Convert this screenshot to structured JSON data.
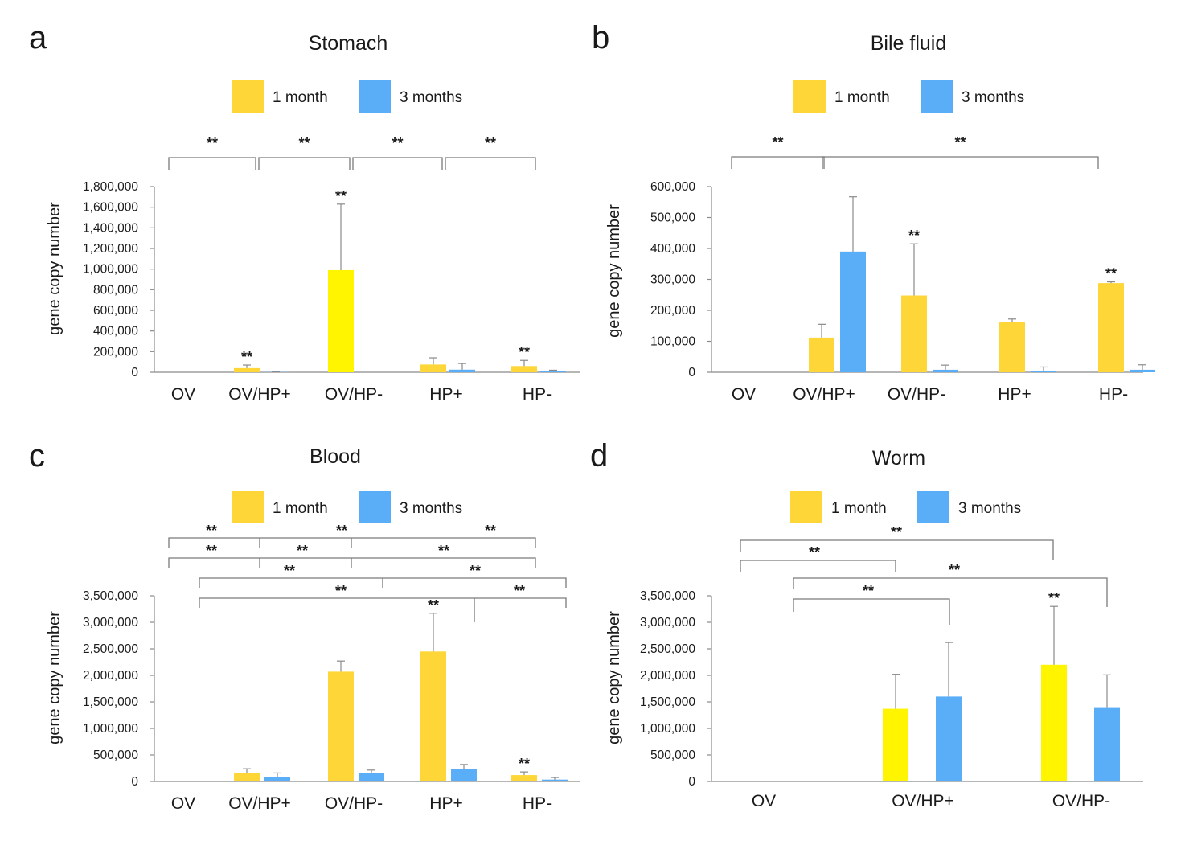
{
  "colors": {
    "one_month_gold": "#fed638",
    "one_month_yellow": "#fff500",
    "three_months": "#5aaef8"
  },
  "chart_data": [
    {
      "panel": "a",
      "type": "bar",
      "title": "Stomach",
      "ylabel": "gene copy number",
      "xlabel": "",
      "ylim": [
        0,
        1800000
      ],
      "yticks": [
        0,
        200000,
        400000,
        600000,
        800000,
        1000000,
        1200000,
        1400000,
        1600000,
        1800000
      ],
      "ytick_labels": [
        "0",
        "200,000",
        "400,000",
        "600,000",
        "800,000",
        "1,000,000",
        "1,200,000",
        "1,400,000",
        "1,600,000",
        "1,800,000"
      ],
      "categories": [
        "OV",
        "OV/HP+",
        "OV/HP-",
        "HP+",
        "HP-"
      ],
      "legend": [
        "1 month",
        "3 months"
      ],
      "series": [
        {
          "name": "1 month",
          "color_key": "one_month_gold",
          "values": [
            0,
            40000,
            990000,
            75000,
            60000
          ],
          "errors": [
            0,
            30000,
            640000,
            65000,
            55000
          ],
          "bar_colors": [
            "one_month_gold",
            "one_month_gold",
            "one_month_yellow",
            "one_month_gold",
            "one_month_gold"
          ]
        },
        {
          "name": "3 months",
          "color_key": "three_months",
          "values": [
            0,
            2000,
            0,
            25000,
            12000
          ],
          "errors": [
            0,
            5000,
            0,
            60000,
            8000
          ]
        }
      ],
      "bar_stars": [
        {
          "series": 0,
          "category": 1,
          "text": "**"
        },
        {
          "series": 0,
          "category": 2,
          "text": "**"
        },
        {
          "series": 0,
          "category": 4,
          "text": "**"
        }
      ],
      "brackets": [
        {
          "from": 0,
          "to": 1,
          "level": 0,
          "text": "**"
        },
        {
          "from": 1,
          "to": 2,
          "level": 0,
          "text": "**"
        },
        {
          "from": 2,
          "to": 3,
          "level": 0,
          "text": "**"
        },
        {
          "from": 3,
          "to": 4,
          "level": 0,
          "text": "**"
        }
      ]
    },
    {
      "panel": "b",
      "type": "bar",
      "title": "Bile fluid",
      "ylabel": "gene copy number",
      "xlabel": "",
      "ylim": [
        0,
        600000
      ],
      "yticks": [
        0,
        100000,
        200000,
        300000,
        400000,
        500000,
        600000
      ],
      "ytick_labels": [
        "0",
        "100,000",
        "200,000",
        "300,000",
        "400,000",
        "500,000",
        "600,000"
      ],
      "categories": [
        "OV",
        "OV/HP+",
        "OV/HP-",
        "HP+",
        "HP-"
      ],
      "legend": [
        "1 month",
        "3 months"
      ],
      "series": [
        {
          "name": "1 month",
          "color_key": "one_month_gold",
          "values": [
            0,
            112000,
            248000,
            162000,
            288000
          ],
          "errors": [
            0,
            43000,
            167000,
            10000,
            4000
          ]
        },
        {
          "name": "3 months",
          "color_key": "three_months",
          "values": [
            0,
            390000,
            8000,
            3000,
            8000
          ],
          "errors": [
            0,
            177000,
            15000,
            14000,
            16000
          ]
        }
      ],
      "bar_stars": [
        {
          "series": 0,
          "category": 2,
          "text": "**"
        },
        {
          "series": 0,
          "category": 4,
          "text": "**"
        }
      ],
      "brackets": [
        {
          "from": 0,
          "to": 1,
          "level": 0,
          "text": "**"
        },
        {
          "from": 1,
          "to": 4,
          "level": 0,
          "text": "**"
        }
      ]
    },
    {
      "panel": "c",
      "type": "bar",
      "title": "Blood",
      "ylabel": "gene copy number",
      "xlabel": "",
      "ylim": [
        0,
        3500000
      ],
      "yticks": [
        0,
        500000,
        1000000,
        1500000,
        2000000,
        2500000,
        3000000,
        3500000
      ],
      "ytick_labels": [
        "0",
        "500,000",
        "1,000,000",
        "1,500,000",
        "2,000,000",
        "2,500,000",
        "3,000,000",
        "3,500,000"
      ],
      "categories": [
        "OV",
        "OV/HP+",
        "OV/HP-",
        "HP+",
        "HP-"
      ],
      "legend": [
        "1 month",
        "3 months"
      ],
      "series": [
        {
          "name": "1 month",
          "color_key": "one_month_gold",
          "values": [
            0,
            160000,
            2070000,
            2450000,
            120000
          ],
          "errors": [
            0,
            80000,
            200000,
            720000,
            60000
          ]
        },
        {
          "name": "3 months",
          "color_key": "three_months",
          "values": [
            0,
            90000,
            155000,
            230000,
            35000
          ],
          "errors": [
            0,
            70000,
            60000,
            90000,
            40000
          ]
        }
      ],
      "bar_stars": [
        {
          "series": 0,
          "category": 3,
          "text": "**"
        },
        {
          "series": 0,
          "category": 4,
          "text": "**"
        }
      ],
      "brackets": [
        {
          "from": 0,
          "to": 4,
          "mid": 2,
          "anchor": "cat",
          "level": 0,
          "text": "**"
        },
        {
          "from": 0,
          "to": 4,
          "mid": 1,
          "anchor": "cat",
          "level": 1,
          "text": "**"
        },
        {
          "from": 0,
          "to": 4,
          "mid": 2,
          "anchor": "s1",
          "level": 2,
          "text": "**"
        },
        {
          "from": 0,
          "to": 4,
          "mid": 3,
          "anchor": "s1",
          "level": 3,
          "text": "**"
        }
      ],
      "bracket_stars": [
        {
          "text": "**",
          "between": [
            0,
            1
          ],
          "level": 0
        },
        {
          "text": "**",
          "between": [
            1,
            2
          ],
          "level": 0
        },
        {
          "text": "**",
          "between": [
            3,
            4
          ],
          "level": 0
        },
        {
          "text": "**",
          "between": [
            0,
            1
          ],
          "level": 1
        },
        {
          "text": "**",
          "between": [
            1,
            2
          ],
          "level": 1
        },
        {
          "text": "**",
          "between": [
            2,
            4
          ],
          "level": 1
        },
        {
          "text": "**",
          "between": [
            0,
            2
          ],
          "level": 2
        },
        {
          "text": "**",
          "between": [
            2,
            4
          ],
          "level": 2
        },
        {
          "text": "**",
          "between": [
            0,
            3
          ],
          "level": 3
        },
        {
          "text": "**",
          "between": [
            3,
            4
          ],
          "level": 3
        }
      ]
    },
    {
      "panel": "d",
      "type": "bar",
      "title": "Worm",
      "ylabel": "gene copy number",
      "xlabel": "",
      "ylim": [
        0,
        3500000
      ],
      "yticks": [
        0,
        500000,
        1000000,
        1500000,
        2000000,
        2500000,
        3000000,
        3500000
      ],
      "ytick_labels": [
        "0",
        "500,000",
        "1,000,000",
        "1,500,000",
        "2,000,000",
        "2,500,000",
        "3,000,000",
        "3,500,000"
      ],
      "categories": [
        "OV",
        "OV/HP+",
        "OV/HP-"
      ],
      "legend": [
        "1 month",
        "3 months"
      ],
      "series": [
        {
          "name": "1 month",
          "color_key": "one_month_yellow",
          "values": [
            0,
            1370000,
            2200000
          ],
          "errors": [
            0,
            650000,
            1100000
          ]
        },
        {
          "name": "3 months",
          "color_key": "three_months",
          "values": [
            0,
            1600000,
            1400000
          ],
          "errors": [
            0,
            1020000,
            610000
          ]
        }
      ],
      "bar_stars": [
        {
          "series": 0,
          "category": 2,
          "text": "**"
        }
      ],
      "brackets": [
        {
          "pairs": [
            [
              0,
              "s0"
            ],
            [
              2,
              "s0"
            ]
          ],
          "level": 0,
          "text": "**"
        },
        {
          "pairs": [
            [
              0,
              "s0"
            ],
            [
              1,
              "s0"
            ]
          ],
          "level": 1,
          "text": "**"
        },
        {
          "pairs": [
            [
              0,
              "s1"
            ],
            [
              2,
              "s1"
            ]
          ],
          "level": 2,
          "text": "**"
        },
        {
          "pairs": [
            [
              0,
              "s1"
            ],
            [
              1,
              "s1"
            ]
          ],
          "level": 3,
          "text": "**"
        }
      ]
    }
  ]
}
